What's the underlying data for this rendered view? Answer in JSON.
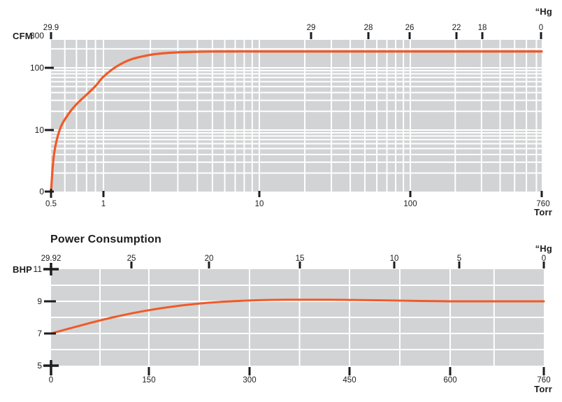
{
  "colors": {
    "curve": "#F05A28",
    "plot_background": "#d2d3d4",
    "grid_line": "#ffffff",
    "text": "#1d1d1f",
    "page_background": "#ffffff"
  },
  "chart_data": [
    {
      "type": "line",
      "name": "pumping-speed",
      "title": "",
      "ylabel": "CFM",
      "xlabel": "Torr",
      "x2label": "“Hg",
      "xscale": "log",
      "yscale": "log",
      "xlim": [
        0.5,
        760
      ],
      "ylim": [
        0,
        300
      ],
      "x_ticks": [
        "0.5",
        "1",
        "10",
        "100",
        "760"
      ],
      "y_ticks": [
        "300",
        "100",
        "10",
        "0"
      ],
      "x2_ticks": [
        "29.9",
        "29",
        "28",
        "26",
        "22",
        "18",
        "0"
      ],
      "grid": true,
      "legend": false,
      "series": [
        {
          "name": "pumping-speed-curve",
          "x": [
            0.5,
            0.52,
            0.56,
            0.62,
            0.7,
            0.8,
            0.9,
            1.0,
            1.2,
            1.5,
            2.0,
            2.5,
            3.0,
            4.0,
            5.0,
            7.0,
            10,
            50,
            100,
            400,
            760
          ],
          "y": [
            0,
            4,
            10,
            17,
            26,
            37,
            51,
            72,
            103,
            136,
            161,
            171,
            176,
            180,
            181.5,
            182,
            182,
            182,
            182,
            182,
            182
          ]
        }
      ]
    },
    {
      "type": "line",
      "name": "power-consumption",
      "title": "Power Consumption",
      "ylabel": "BHP",
      "xlabel": "Torr",
      "x2label": "“Hg",
      "xscale": "linear",
      "yscale": "linear",
      "xlim": [
        0,
        760
      ],
      "ylim": [
        5,
        11
      ],
      "x_ticks": [
        "0",
        "150",
        "300",
        "450",
        "600",
        "760"
      ],
      "y_ticks": [
        "11",
        "9",
        "7",
        "5"
      ],
      "x2_ticks": [
        "29.92",
        "25",
        "20",
        "15",
        "10",
        "5",
        "0"
      ],
      "grid": true,
      "legend": false,
      "series": [
        {
          "name": "power-curve",
          "x": [
            0,
            50,
            100,
            150,
            200,
            250,
            300,
            350,
            420,
            500,
            600,
            680,
            760
          ],
          "y": [
            7.0,
            7.55,
            8.05,
            8.45,
            8.75,
            8.95,
            9.05,
            9.1,
            9.1,
            9.06,
            9.0,
            9.0,
            9.0
          ]
        }
      ]
    }
  ]
}
